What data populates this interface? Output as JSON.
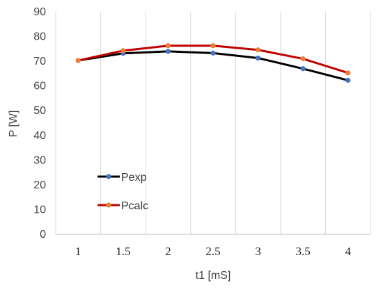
{
  "chart_data": {
    "type": "line",
    "title": "",
    "xlabel": "t1 [mS]",
    "ylabel": "P [W]",
    "x": [
      1,
      1.5,
      2,
      2.5,
      3,
      3.5,
      4
    ],
    "x_tick_labels": [
      "1",
      "1.5",
      "2",
      "2.5",
      "3",
      "3.5",
      "4"
    ],
    "ylim": [
      0,
      90
    ],
    "y_ticks": [
      0,
      10,
      20,
      30,
      40,
      50,
      60,
      70,
      80,
      90
    ],
    "grid": {
      "vertical": true,
      "horizontal": false
    },
    "legend_position": "lower-left",
    "series": [
      {
        "name": "Pexp",
        "values": [
          70.3,
          73.2,
          74.0,
          73.3,
          71.3,
          67.0,
          62.3
        ],
        "line_color": "#000000",
        "marker_color": "#4472C4"
      },
      {
        "name": "Pcalc",
        "values": [
          70.3,
          74.3,
          76.3,
          76.3,
          74.6,
          71.0,
          65.3
        ],
        "line_color": "#C00000",
        "marker_color": "#ED7D31"
      }
    ]
  }
}
